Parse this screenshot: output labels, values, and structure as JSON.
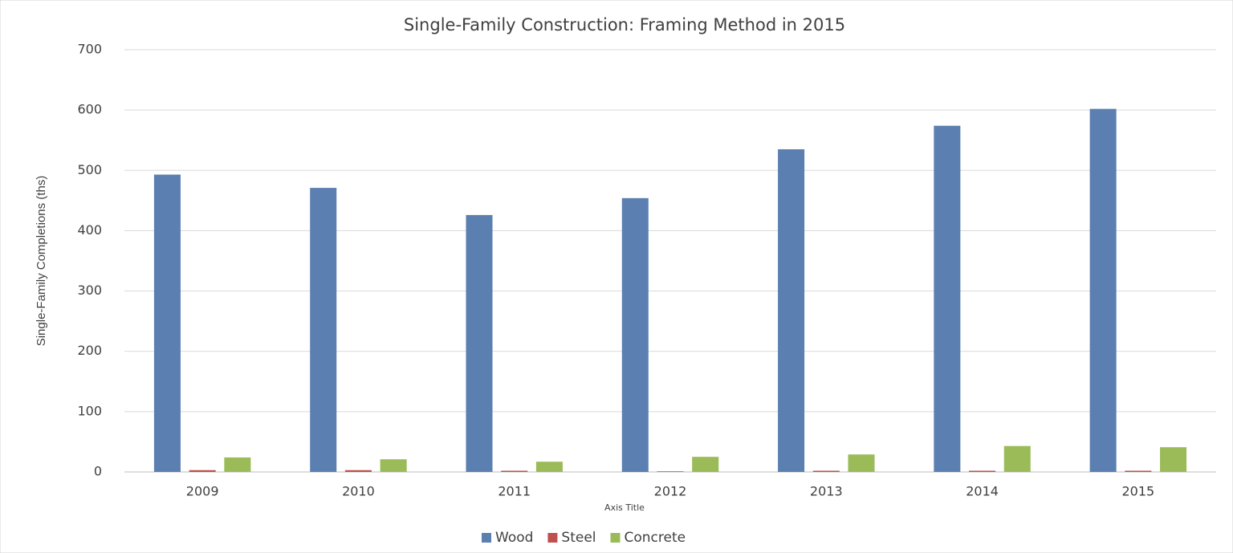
{
  "chart_data": {
    "type": "bar",
    "title": "Single-Family Construction: Framing Method in 2015",
    "x_label": "Axis Title",
    "y_label": "Single-Family Completions (ths)",
    "categories": [
      "2009",
      "2010",
      "2011",
      "2012",
      "2013",
      "2014",
      "2015"
    ],
    "series": [
      {
        "name": "Wood",
        "color": "#5b7fb0",
        "values": [
          493,
          471,
          426,
          454,
          535,
          574,
          602
        ]
      },
      {
        "name": "Steel",
        "color": "#c0504d",
        "values": [
          3,
          3,
          2,
          1,
          2,
          2,
          2
        ]
      },
      {
        "name": "Concrete",
        "color": "#9bbb59",
        "values": [
          24,
          21,
          17,
          25,
          29,
          43,
          41
        ]
      }
    ],
    "ylim": [
      0,
      700
    ],
    "yticks": [
      0,
      100,
      200,
      300,
      400,
      500,
      600,
      700
    ],
    "grid": true,
    "legend": "bottom"
  }
}
